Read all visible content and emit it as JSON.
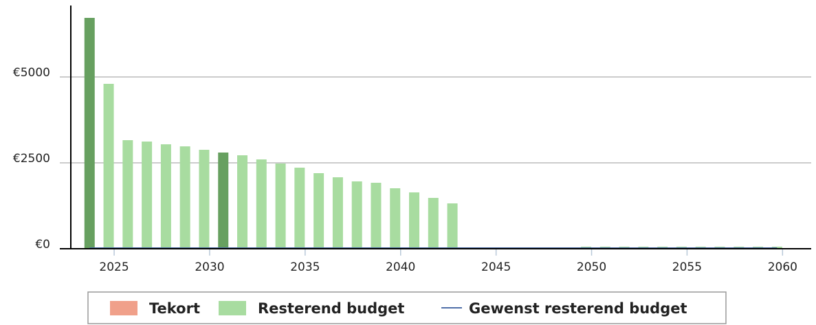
{
  "chart_data": {
    "type": "bar",
    "x": [
      2024,
      2025,
      2026,
      2027,
      2028,
      2029,
      2030,
      2031,
      2032,
      2033,
      2034,
      2035,
      2036,
      2037,
      2038,
      2039,
      2040,
      2041,
      2042,
      2043,
      2044,
      2045,
      2046,
      2047,
      2048,
      2049,
      2050,
      2051,
      2052,
      2053,
      2054,
      2055,
      2056,
      2057,
      2058,
      2059,
      2060
    ],
    "xlim": [
      2022.73,
      2061.5
    ],
    "xticks": [
      2025,
      2030,
      2035,
      2040,
      2045,
      2050,
      2055,
      2060
    ],
    "ylim": [
      0,
      7080
    ],
    "yticks": [
      {
        "value": 0,
        "label": "€0"
      },
      {
        "value": 2500,
        "label": "€2500"
      },
      {
        "value": 5000,
        "label": "€5000"
      }
    ],
    "grid": true,
    "series": [
      {
        "name": "Tekort",
        "color": "#f0a08a",
        "values": [
          0,
          0,
          0,
          0,
          0,
          0,
          0,
          0,
          0,
          0,
          0,
          0,
          0,
          0,
          0,
          0,
          0,
          0,
          0,
          0,
          0,
          0,
          0,
          0,
          0,
          0,
          0,
          0,
          0,
          0,
          0,
          0,
          0,
          0,
          0,
          0,
          0
        ]
      },
      {
        "name": "Resterend budget",
        "color": "#a8dca0",
        "colors": [
          "#67a060",
          "#a8dca0",
          "#a8dca0",
          "#a8dca0",
          "#a8dca0",
          "#a8dca0",
          "#a8dca0",
          "#67a060",
          "#a8dca0",
          "#a8dca0",
          "#a8dca0",
          "#a8dca0",
          "#a8dca0",
          "#a8dca0",
          "#a8dca0",
          "#a8dca0",
          "#a8dca0",
          "#a8dca0",
          "#a8dca0",
          "#a8dca0",
          "#a8dca0",
          "#a8dca0",
          "#a8dca0",
          "#a8dca0",
          "#a8dca0",
          "#a8dca0",
          "#a8dca0",
          "#a8dca0",
          "#a8dca0",
          "#a8dca0",
          "#a8dca0",
          "#a8dca0",
          "#a8dca0",
          "#a8dca0",
          "#a8dca0",
          "#a8dca0",
          "#a8dca0"
        ],
        "values": [
          6720,
          4800,
          3160,
          3120,
          3040,
          2980,
          2880,
          2800,
          2720,
          2600,
          2480,
          2360,
          2200,
          2080,
          1960,
          1920,
          1760,
          1640,
          1480,
          1320,
          20,
          20,
          20,
          20,
          20,
          20,
          60,
          60,
          60,
          60,
          60,
          60,
          60,
          60,
          60,
          60,
          60
        ]
      },
      {
        "name": "Gewenst resterend budget",
        "color": "#4f6fa8",
        "kind": "line",
        "values": [
          20,
          20,
          20,
          20,
          20,
          20,
          20,
          20,
          20,
          20,
          20,
          20,
          20,
          20,
          20,
          20,
          20,
          20,
          20,
          20,
          20,
          20,
          20,
          20,
          20,
          20,
          20,
          20,
          20,
          20,
          20,
          20,
          20,
          20,
          20,
          20,
          20
        ]
      }
    ]
  }
}
